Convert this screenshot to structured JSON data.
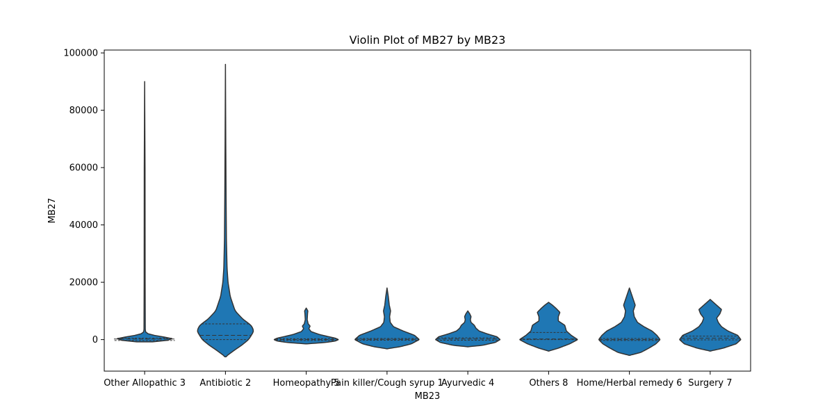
{
  "chart_data": {
    "type": "violin",
    "title": "Violin Plot of MB27 by MB23",
    "xlabel": "MB23",
    "ylabel": "MB27",
    "ylim": [
      -11000,
      101000
    ],
    "yticks": [
      0,
      20000,
      40000,
      60000,
      80000,
      100000
    ],
    "ytick_labels": [
      "0",
      "20000",
      "40000",
      "60000",
      "80000",
      "100000"
    ],
    "grid": false,
    "fill_color": "#1f77b4",
    "edge_color": "#333333",
    "categories": [
      "Other Allopathic 3",
      "Antibiotic 2",
      "Homeopathy 5",
      "Pain killer/Cough syrup 1",
      "Ayurvedic 4",
      "Others 8",
      "Home/Herbal remedy 6",
      "Surgery 7"
    ],
    "series": [
      {
        "name": "Other Allopathic 3",
        "q1": -300,
        "median": 200,
        "q3": 500,
        "profile": [
          [
            -800,
            0
          ],
          [
            -500,
            0.8
          ],
          [
            -200,
            1.0
          ],
          [
            200,
            0.95
          ],
          [
            600,
            0.8
          ],
          [
            1200,
            0.4
          ],
          [
            2000,
            0.06
          ],
          [
            3000,
            0.02
          ],
          [
            20000,
            0.015
          ],
          [
            60000,
            0.012
          ],
          [
            90000,
            0
          ]
        ]
      },
      {
        "name": "Antibiotic 2",
        "q1": 0,
        "median": 1500,
        "q3": 5500,
        "profile": [
          [
            -6000,
            0
          ],
          [
            -5000,
            0.12
          ],
          [
            -3500,
            0.3
          ],
          [
            -2000,
            0.5
          ],
          [
            0,
            0.72
          ],
          [
            1500,
            0.8
          ],
          [
            3000,
            0.88
          ],
          [
            5000,
            0.8
          ],
          [
            7000,
            0.55
          ],
          [
            10000,
            0.3
          ],
          [
            15000,
            0.15
          ],
          [
            20000,
            0.08
          ],
          [
            25000,
            0.05
          ],
          [
            35000,
            0.03
          ],
          [
            50000,
            0.02
          ],
          [
            70000,
            0.01
          ],
          [
            96000,
            0
          ]
        ]
      },
      {
        "name": "Homeopathy 5",
        "q1": -300,
        "median": 0,
        "q3": 300,
        "profile": [
          [
            -1500,
            0
          ],
          [
            -1000,
            0.6
          ],
          [
            -500,
            0.9
          ],
          [
            0,
            1.0
          ],
          [
            500,
            0.9
          ],
          [
            1000,
            0.7
          ],
          [
            1800,
            0.4
          ],
          [
            2800,
            0.15
          ],
          [
            3800,
            0.08
          ],
          [
            4700,
            0.12
          ],
          [
            5500,
            0.06
          ],
          [
            7000,
            0.03
          ],
          [
            9000,
            0.04
          ],
          [
            10000,
            0.05
          ],
          [
            11000,
            0
          ]
        ]
      },
      {
        "name": "Pain killer/Cough syrup 1",
        "q1": -200,
        "median": 100,
        "q3": 400,
        "profile": [
          [
            -3200,
            0
          ],
          [
            -2500,
            0.4
          ],
          [
            -1500,
            0.75
          ],
          [
            0,
            1.0
          ],
          [
            1500,
            0.85
          ],
          [
            3000,
            0.5
          ],
          [
            4500,
            0.2
          ],
          [
            6000,
            0.1
          ],
          [
            8000,
            0.08
          ],
          [
            10000,
            0.11
          ],
          [
            12000,
            0.07
          ],
          [
            15000,
            0.04
          ],
          [
            18000,
            0
          ]
        ]
      },
      {
        "name": "Ayurvedic 4",
        "q1": -200,
        "median": 200,
        "q3": 600,
        "profile": [
          [
            -2500,
            0
          ],
          [
            -2000,
            0.45
          ],
          [
            -1000,
            0.85
          ],
          [
            0,
            1.0
          ],
          [
            1000,
            0.9
          ],
          [
            2000,
            0.6
          ],
          [
            3000,
            0.35
          ],
          [
            4000,
            0.25
          ],
          [
            5000,
            0.2
          ],
          [
            6000,
            0.1
          ],
          [
            7000,
            0.08
          ],
          [
            8000,
            0.1
          ],
          [
            9000,
            0.06
          ],
          [
            10000,
            0
          ]
        ]
      },
      {
        "name": "Others 8",
        "q1": 0,
        "median": 200,
        "q3": 2500,
        "profile": [
          [
            -4000,
            0
          ],
          [
            -3000,
            0.3
          ],
          [
            -1500,
            0.65
          ],
          [
            0,
            0.9
          ],
          [
            1500,
            0.7
          ],
          [
            3000,
            0.55
          ],
          [
            5000,
            0.5
          ],
          [
            6500,
            0.3
          ],
          [
            8000,
            0.3
          ],
          [
            9500,
            0.35
          ],
          [
            11000,
            0.22
          ],
          [
            12000,
            0.12
          ],
          [
            13000,
            0
          ]
        ]
      },
      {
        "name": "Home/Herbal remedy 6",
        "q1": -300,
        "median": 0,
        "q3": 400,
        "profile": [
          [
            -5500,
            0
          ],
          [
            -4500,
            0.35
          ],
          [
            -3000,
            0.6
          ],
          [
            -1500,
            0.82
          ],
          [
            0,
            0.95
          ],
          [
            1500,
            0.85
          ],
          [
            3000,
            0.7
          ],
          [
            4500,
            0.45
          ],
          [
            6000,
            0.25
          ],
          [
            8000,
            0.15
          ],
          [
            10000,
            0.12
          ],
          [
            12000,
            0.18
          ],
          [
            14000,
            0.12
          ],
          [
            16000,
            0.06
          ],
          [
            18000,
            0
          ]
        ]
      },
      {
        "name": "Surgery 7",
        "q1": -100,
        "median": 500,
        "q3": 1200,
        "profile": [
          [
            -4000,
            0
          ],
          [
            -3000,
            0.4
          ],
          [
            -1500,
            0.8
          ],
          [
            0,
            0.95
          ],
          [
            1500,
            0.85
          ],
          [
            3000,
            0.55
          ],
          [
            4500,
            0.35
          ],
          [
            6000,
            0.25
          ],
          [
            7500,
            0.2
          ],
          [
            9000,
            0.3
          ],
          [
            10500,
            0.35
          ],
          [
            12000,
            0.2
          ],
          [
            13000,
            0.1
          ],
          [
            14000,
            0
          ]
        ]
      }
    ]
  }
}
